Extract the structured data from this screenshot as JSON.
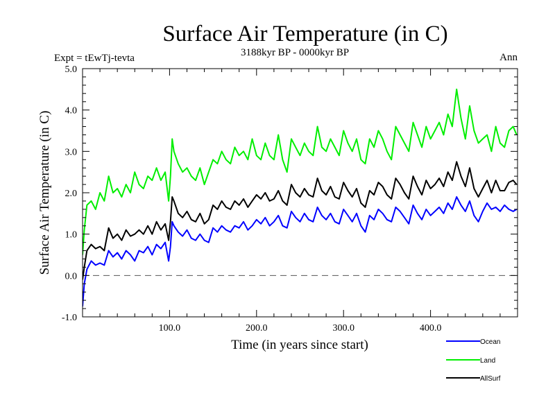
{
  "chart_data": {
    "type": "line",
    "title": "Surface Air Temperature (in C)",
    "subtitle": "3188kyr BP - 0000kyr BP",
    "experiment_label": "Expt = tEwTj-tevta",
    "season_label": "Ann",
    "xlabel": "Time (in years since start)",
    "ylabel": "Surface Air Temperature (in C)",
    "xlim": [
      0,
      500
    ],
    "ylim": [
      -1.0,
      5.0
    ],
    "x_ticks": [
      100,
      200,
      300,
      400
    ],
    "x_tick_labels": [
      "100.0",
      "200.0",
      "300.0",
      "400.0"
    ],
    "x_minor_step": 20,
    "y_ticks": [
      -1,
      0,
      1,
      2,
      3,
      4,
      5
    ],
    "y_tick_labels": [
      "-1.0",
      "0.0",
      "1.0",
      "2.0",
      "3.0",
      "4.0",
      "5.0"
    ],
    "y_minor_step": 0.2,
    "reference_line": {
      "y": 0.0,
      "style": "dashed",
      "color": "#555555"
    },
    "grid": false,
    "legend_position": "bottom-right",
    "x": [
      0,
      2,
      5,
      10,
      15,
      20,
      25,
      30,
      35,
      40,
      45,
      50,
      55,
      60,
      65,
      70,
      75,
      80,
      85,
      90,
      95,
      99,
      101,
      103,
      105,
      110,
      115,
      120,
      125,
      130,
      135,
      140,
      145,
      150,
      155,
      160,
      165,
      170,
      175,
      180,
      185,
      190,
      195,
      200,
      205,
      210,
      215,
      220,
      225,
      230,
      235,
      240,
      245,
      250,
      255,
      260,
      265,
      270,
      275,
      280,
      285,
      290,
      295,
      300,
      305,
      310,
      315,
      320,
      325,
      330,
      335,
      340,
      345,
      350,
      355,
      360,
      365,
      370,
      375,
      380,
      385,
      390,
      395,
      400,
      405,
      410,
      415,
      420,
      425,
      430,
      435,
      440,
      445,
      450,
      455,
      460,
      465,
      470,
      475,
      480,
      485,
      490,
      495,
      499
    ],
    "series": [
      {
        "name": "Ocean",
        "color": "#0000ff",
        "values": [
          -0.75,
          -0.2,
          0.15,
          0.35,
          0.25,
          0.3,
          0.25,
          0.6,
          0.45,
          0.55,
          0.4,
          0.6,
          0.5,
          0.35,
          0.6,
          0.55,
          0.7,
          0.5,
          0.75,
          0.65,
          0.8,
          0.35,
          0.7,
          1.3,
          1.2,
          1.05,
          0.95,
          1.1,
          0.9,
          0.85,
          1.0,
          0.85,
          0.8,
          1.15,
          1.05,
          1.2,
          1.1,
          1.05,
          1.2,
          1.15,
          1.3,
          1.1,
          1.2,
          1.35,
          1.25,
          1.4,
          1.2,
          1.3,
          1.45,
          1.2,
          1.15,
          1.55,
          1.4,
          1.3,
          1.5,
          1.35,
          1.3,
          1.65,
          1.45,
          1.35,
          1.5,
          1.3,
          1.25,
          1.6,
          1.45,
          1.3,
          1.5,
          1.2,
          1.05,
          1.45,
          1.35,
          1.6,
          1.5,
          1.35,
          1.3,
          1.65,
          1.55,
          1.4,
          1.25,
          1.7,
          1.5,
          1.35,
          1.6,
          1.45,
          1.55,
          1.65,
          1.5,
          1.75,
          1.6,
          1.9,
          1.7,
          1.55,
          1.8,
          1.45,
          1.3,
          1.55,
          1.75,
          1.6,
          1.65,
          1.55,
          1.7,
          1.6,
          1.55,
          1.6
        ]
      },
      {
        "name": "Land",
        "color": "#00ee00",
        "values": [
          0.5,
          1.1,
          1.7,
          1.8,
          1.6,
          2.0,
          1.8,
          2.4,
          2.0,
          2.1,
          1.9,
          2.2,
          2.0,
          2.5,
          2.2,
          2.1,
          2.4,
          2.3,
          2.6,
          2.3,
          2.5,
          1.8,
          2.4,
          3.3,
          3.0,
          2.7,
          2.5,
          2.6,
          2.4,
          2.3,
          2.6,
          2.2,
          2.5,
          2.8,
          2.7,
          3.0,
          2.8,
          2.7,
          3.1,
          2.9,
          3.0,
          2.8,
          3.3,
          2.9,
          2.8,
          3.2,
          2.9,
          2.8,
          3.4,
          2.8,
          2.5,
          3.3,
          3.1,
          2.9,
          3.2,
          3.0,
          2.9,
          3.6,
          3.1,
          3.0,
          3.3,
          3.1,
          2.9,
          3.5,
          3.2,
          3.0,
          3.3,
          2.8,
          2.7,
          3.3,
          3.1,
          3.5,
          3.3,
          3.0,
          2.8,
          3.6,
          3.4,
          3.2,
          3.0,
          3.7,
          3.4,
          3.1,
          3.6,
          3.3,
          3.5,
          3.7,
          3.4,
          3.9,
          3.6,
          4.5,
          3.8,
          3.3,
          4.1,
          3.5,
          3.2,
          3.3,
          3.4,
          3.0,
          3.6,
          3.2,
          3.1,
          3.5,
          3.6,
          3.4
        ]
      },
      {
        "name": "AllSurf",
        "color": "#000000",
        "values": [
          -0.1,
          0.2,
          0.6,
          0.75,
          0.65,
          0.7,
          0.6,
          1.15,
          0.9,
          1.0,
          0.85,
          1.1,
          0.95,
          1.0,
          1.1,
          1.0,
          1.2,
          1.0,
          1.3,
          1.1,
          1.25,
          0.85,
          1.3,
          1.9,
          1.8,
          1.5,
          1.4,
          1.55,
          1.35,
          1.3,
          1.5,
          1.25,
          1.35,
          1.7,
          1.6,
          1.8,
          1.65,
          1.6,
          1.8,
          1.7,
          1.85,
          1.65,
          1.8,
          1.95,
          1.85,
          2.0,
          1.8,
          1.85,
          2.05,
          1.8,
          1.7,
          2.2,
          2.0,
          1.9,
          2.1,
          1.95,
          1.9,
          2.35,
          2.05,
          1.95,
          2.15,
          1.9,
          1.85,
          2.25,
          2.05,
          1.9,
          2.1,
          1.75,
          1.65,
          2.05,
          1.95,
          2.25,
          2.15,
          1.95,
          1.85,
          2.35,
          2.2,
          2.0,
          1.85,
          2.4,
          2.15,
          1.95,
          2.3,
          2.1,
          2.2,
          2.35,
          2.15,
          2.5,
          2.3,
          2.75,
          2.4,
          2.15,
          2.6,
          2.1,
          1.9,
          2.1,
          2.3,
          2.0,
          2.3,
          2.05,
          2.05,
          2.25,
          2.3,
          2.2
        ]
      }
    ]
  }
}
